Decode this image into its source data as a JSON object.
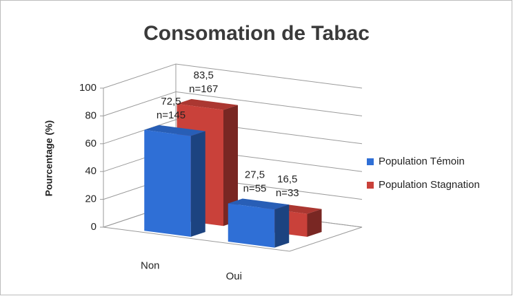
{
  "chart_data": {
    "type": "bar3d",
    "title": "Consomation de Tabac",
    "ylabel": "Pourcentage (%)",
    "categories": [
      "Non",
      "Oui"
    ],
    "series": [
      {
        "name": "Population Témoin",
        "color": "#2f6fd6",
        "values": [
          72.5,
          27.5
        ],
        "value_labels": [
          "72,5",
          "27,5"
        ],
        "n_labels": [
          "n=145",
          "n=55"
        ]
      },
      {
        "name": "Population Stagnation",
        "color": "#c9413a",
        "values": [
          83.5,
          16.5
        ],
        "value_labels": [
          "83,5",
          "16,5"
        ],
        "n_labels": [
          "n=167",
          "n=33"
        ]
      }
    ],
    "ylim": [
      0,
      100
    ],
    "yticks": [
      0,
      20,
      40,
      60,
      80,
      100
    ],
    "grid": true,
    "legend": "right"
  }
}
